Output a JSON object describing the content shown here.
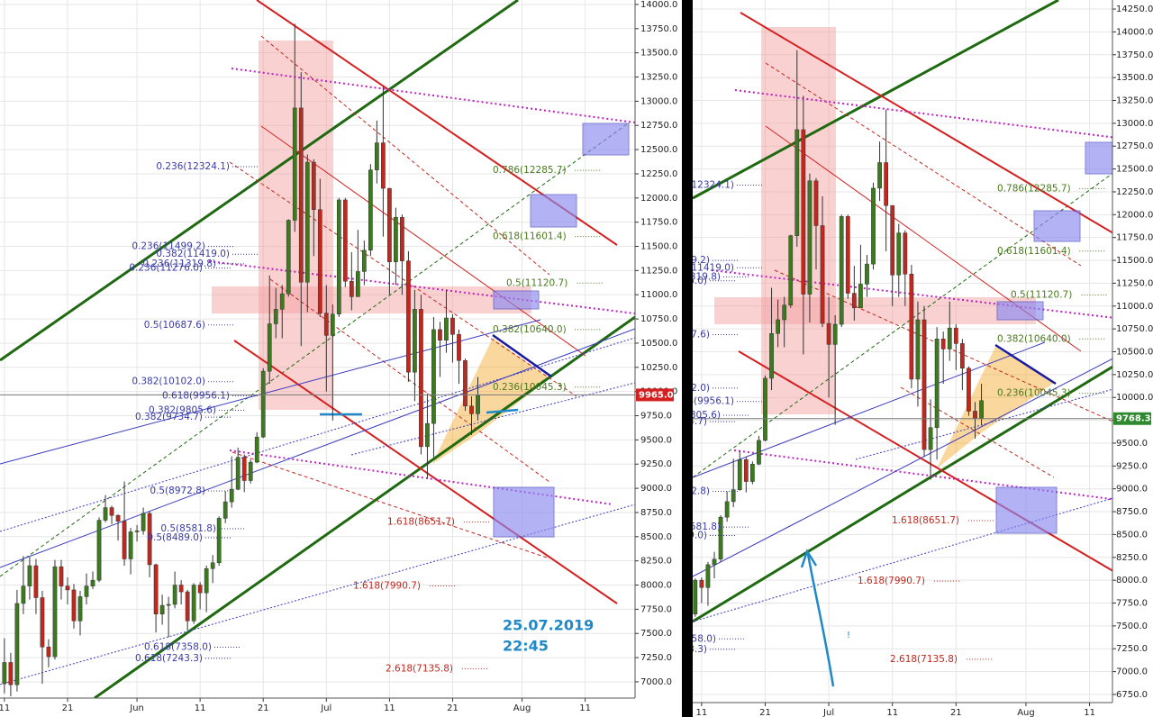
{
  "chart_data": [
    {
      "type": "candlestick",
      "xlim": [
        130.3,
        230.9
      ],
      "ylim": [
        6832,
        14046
      ],
      "xticks": [
        {
          "value": 131,
          "label": "11"
        },
        {
          "value": 141,
          "label": "21"
        },
        {
          "value": 152,
          "label": "Jun"
        },
        {
          "value": 162,
          "label": "11"
        },
        {
          "value": 172,
          "label": "21"
        },
        {
          "value": 182,
          "label": "Jul"
        },
        {
          "value": 192,
          "label": "11"
        },
        {
          "value": 202,
          "label": "21"
        },
        {
          "value": 213,
          "label": "Aug"
        },
        {
          "value": 223,
          "label": "11"
        }
      ],
      "yticks": [
        {
          "value": 7000,
          "label": "7000.0"
        },
        {
          "value": 7250,
          "label": "7250.0"
        },
        {
          "value": 7500,
          "label": "7500.0"
        },
        {
          "value": 7750,
          "label": "7750.0"
        },
        {
          "value": 8000,
          "label": "8000.0"
        },
        {
          "value": 8250,
          "label": "8250.0"
        },
        {
          "value": 8500,
          "label": "8500.0"
        },
        {
          "value": 8750,
          "label": "8750.0"
        },
        {
          "value": 9000,
          "label": "9000.0"
        },
        {
          "value": 9250,
          "label": "9250.0"
        },
        {
          "value": 9500,
          "label": "9500.0"
        },
        {
          "value": 9750,
          "label": "9750.0"
        },
        {
          "value": 10000,
          "label": "10000.0"
        },
        {
          "value": 10250,
          "label": "10250.0"
        },
        {
          "value": 10500,
          "label": "10500.0"
        },
        {
          "value": 10750,
          "label": "10750.0"
        },
        {
          "value": 11000,
          "label": "11000.0"
        },
        {
          "value": 11250,
          "label": "11250.0"
        },
        {
          "value": 11500,
          "label": "11500.0"
        },
        {
          "value": 11750,
          "label": "11750.0"
        },
        {
          "value": 12000,
          "label": "12000.0"
        },
        {
          "value": 12250,
          "label": "12250.0"
        },
        {
          "value": 12500,
          "label": "12500.0"
        },
        {
          "value": 12750,
          "label": "12750.0"
        },
        {
          "value": 13000,
          "label": "13000.0"
        },
        {
          "value": 13250,
          "label": "13250.0"
        },
        {
          "value": 13500,
          "label": "13500.0"
        },
        {
          "value": 13750,
          "label": "13750.0"
        },
        {
          "value": 14000,
          "label": "14000.0"
        }
      ],
      "grid": true,
      "up_color": "#3c7a1e",
      "down_color": "#c0281e",
      "candles": {
        "x": [
          131,
          132,
          133,
          134,
          135,
          136,
          137,
          138,
          139,
          140,
          141,
          142,
          143,
          144,
          145,
          146,
          147,
          148,
          149,
          150,
          151,
          152,
          153,
          154,
          155,
          156,
          157,
          158,
          159,
          160,
          161,
          162,
          163,
          164,
          165,
          166,
          167,
          168,
          169,
          170,
          171,
          172,
          173,
          174,
          175,
          176,
          177,
          178,
          179,
          180,
          181,
          182,
          183,
          184,
          185,
          186,
          187,
          188,
          189,
          190,
          191,
          192,
          193,
          194,
          195,
          196,
          197,
          198,
          199,
          200,
          201,
          202,
          203,
          204,
          205,
          206
        ],
        "open": [
          6980,
          7200,
          6970,
          7810,
          7990,
          8200,
          7870,
          7360,
          7260,
          8190,
          7990,
          7950,
          7630,
          7880,
          7990,
          8050,
          8670,
          8800,
          8720,
          8660,
          8270,
          8550,
          8560,
          8740,
          8210,
          7700,
          7790,
          7800,
          8000,
          7930,
          7630,
          8000,
          7920,
          8170,
          8230,
          8690,
          8860,
          8990,
          9320,
          9080,
          9270,
          9530,
          10210,
          10700,
          10850,
          11010,
          11770,
          12930,
          11130,
          12370,
          11880,
          10810,
          10580,
          10800,
          11980,
          11140,
          10980,
          11240,
          11460,
          12290,
          12570,
          12100,
          11340,
          11800,
          11350,
          10200,
          10850,
          9430,
          9670,
          10640,
          10530,
          10760,
          10590,
          10320,
          9850,
          9770
        ],
        "high": [
          7450,
          7300,
          7950,
          8300,
          8290,
          8270,
          7940,
          7440,
          8260,
          8260,
          8080,
          8010,
          7940,
          8120,
          8140,
          8700,
          8930,
          8820,
          8730,
          9070,
          8590,
          8620,
          8800,
          8760,
          8220,
          7900,
          7880,
          8140,
          8050,
          7950,
          8020,
          8030,
          8200,
          8310,
          8710,
          8970,
          9330,
          9420,
          9350,
          9300,
          9580,
          10240,
          11200,
          11070,
          11100,
          11780,
          13800,
          13300,
          12450,
          12400,
          12200,
          11100,
          10900,
          12000,
          12000,
          11440,
          11670,
          11560,
          12350,
          12800,
          13150,
          12100,
          11900,
          11830,
          11450,
          11050,
          11000,
          9980,
          10770,
          10720,
          11050,
          10800,
          10640,
          10340,
          9950,
          10150
        ],
        "low": [
          6880,
          6850,
          6900,
          7700,
          7850,
          7700,
          6980,
          7150,
          7230,
          7850,
          7800,
          7550,
          7480,
          7800,
          7960,
          8030,
          8650,
          8630,
          8460,
          8200,
          8110,
          8450,
          8520,
          8080,
          7510,
          7590,
          7460,
          7760,
          7800,
          7530,
          7600,
          7750,
          7720,
          8020,
          8200,
          8640,
          8800,
          8980,
          8960,
          9050,
          9260,
          9520,
          10080,
          10550,
          10550,
          10980,
          11650,
          10470,
          10820,
          11400,
          10770,
          10000,
          9700,
          10770,
          11080,
          10840,
          10980,
          11100,
          11400,
          12150,
          11600,
          11000,
          11100,
          11000,
          10100,
          9900,
          9350,
          9100,
          9320,
          10150,
          10400,
          10300,
          10080,
          9800,
          9550,
          9700
        ],
        "close": [
          7200,
          6970,
          7810,
          7990,
          8200,
          7870,
          7360,
          7260,
          8190,
          7990,
          7950,
          7630,
          7880,
          7990,
          8050,
          8670,
          8800,
          8720,
          8660,
          8270,
          8550,
          8560,
          8740,
          8210,
          7700,
          7790,
          7800,
          8000,
          7930,
          7630,
          8000,
          7920,
          8170,
          8230,
          8690,
          8860,
          8990,
          9320,
          9080,
          9270,
          9530,
          10210,
          10700,
          10850,
          11010,
          11770,
          12930,
          11130,
          12370,
          11880,
          10810,
          10580,
          10800,
          11980,
          11140,
          10980,
          11240,
          11460,
          12290,
          12570,
          12100,
          11340,
          11800,
          11350,
          10200,
          10850,
          9430,
          9670,
          10640,
          10530,
          10760,
          10590,
          10320,
          9850,
          9770,
          9965
        ]
      },
      "levels": [
        {
          "value": 12324.1,
          "label": "0.236(12324.1)",
          "color": "#3a3aa8"
        },
        {
          "value": 11499.2,
          "label": "0.236(11499.2)",
          "color": "#3a3aa8"
        },
        {
          "value": 11419.0,
          "label": "0.382(11419.0)",
          "color": "#3a3aa8"
        },
        {
          "value": 11319.8,
          "label": "0.236(11319.8)",
          "color": "#3a3aa8"
        },
        {
          "value": 11276.0,
          "label": "0.236(11276.0)",
          "color": "#3a3aa8"
        },
        {
          "value": 10687.6,
          "label": "0.5(10687.6)",
          "color": "#3a3aa8"
        },
        {
          "value": 10102.0,
          "label": "0.382(10102.0)",
          "color": "#3a3aa8"
        },
        {
          "value": 9956.1,
          "label": "0.618(9956.1)",
          "color": "#3a3aa8"
        },
        {
          "value": 9805.6,
          "label": "0.382(9805.6)",
          "color": "#3a3aa8"
        },
        {
          "value": 9734.7,
          "label": "0.382(9734.7)",
          "color": "#3a3aa8"
        },
        {
          "value": 8972.8,
          "label": "0.5(8972.8)",
          "color": "#3a3aa8"
        },
        {
          "value": 8581.8,
          "label": "0.5(8581.8)",
          "color": "#3a3aa8"
        },
        {
          "value": 8489.0,
          "label": "0.5(8489.0)",
          "color": "#3a3aa8"
        },
        {
          "value": 7358.0,
          "label": "0.618(7358.0)",
          "color": "#3a3aa8"
        },
        {
          "value": 7243.3,
          "label": "0.618(7243.3)",
          "color": "#3a3aa8"
        },
        {
          "value": 12285.7,
          "label": "0.786(12285.7)",
          "color": "#4a7a1e"
        },
        {
          "value": 11601.4,
          "label": "0.618(11601.4)",
          "color": "#4a7a1e"
        },
        {
          "value": 11120.7,
          "label": "0.5(11120.7)",
          "color": "#4a7a1e"
        },
        {
          "value": 10640.0,
          "label": "0.382(10640.0)",
          "color": "#4a7a1e"
        },
        {
          "value": 10045.3,
          "label": "0.236(10045.3)",
          "color": "#4a7a1e"
        },
        {
          "value": 8651.7,
          "label": "1.618(8651.7)",
          "color": "#c0281e"
        },
        {
          "value": 7990.7,
          "label": "1.618(7990.7)",
          "color": "#c0281e"
        },
        {
          "value": 7135.8,
          "label": "2.618(7135.8)",
          "color": "#c0281e"
        }
      ],
      "price_tag": {
        "value": 9965,
        "label": "9965.0",
        "color": "#d42020"
      },
      "annotation": [
        "25.07.2019",
        "22:45"
      ]
    },
    {
      "type": "candlestick",
      "xlim": [
        160.6,
        226.6
      ],
      "ylim": [
        6661,
        14349
      ],
      "xticks": [
        {
          "value": 162,
          "label": "11"
        },
        {
          "value": 172,
          "label": "21"
        },
        {
          "value": 182,
          "label": "Jul"
        },
        {
          "value": 192,
          "label": "11"
        },
        {
          "value": 202,
          "label": "21"
        },
        {
          "value": 213,
          "label": "Aug"
        },
        {
          "value": 223,
          "label": "11"
        }
      ],
      "yticks": [
        {
          "value": 6750,
          "label": "6750.0"
        },
        {
          "value": 7000,
          "label": "7000.0"
        },
        {
          "value": 7250,
          "label": "7250.0"
        },
        {
          "value": 7500,
          "label": "7500.0"
        },
        {
          "value": 7750,
          "label": "7750.0"
        },
        {
          "value": 8000,
          "label": "8000.0"
        },
        {
          "value": 8250,
          "label": "8250.0"
        },
        {
          "value": 8500,
          "label": "8500.0"
        },
        {
          "value": 8750,
          "label": "8750.0"
        },
        {
          "value": 9000,
          "label": "9000.0"
        },
        {
          "value": 9250,
          "label": "9250.0"
        },
        {
          "value": 9500,
          "label": "9500.0"
        },
        {
          "value": 9750,
          "label": "9750.0"
        },
        {
          "value": 10000,
          "label": "10000.0"
        },
        {
          "value": 10250,
          "label": "10250.0"
        },
        {
          "value": 10500,
          "label": "10500.0"
        },
        {
          "value": 10750,
          "label": "10750.0"
        },
        {
          "value": 11000,
          "label": "11000.0"
        },
        {
          "value": 11250,
          "label": "11250.0"
        },
        {
          "value": 11500,
          "label": "11500.0"
        },
        {
          "value": 11750,
          "label": "11750.0"
        },
        {
          "value": 12000,
          "label": "12000.0"
        },
        {
          "value": 12250,
          "label": "12250.0"
        },
        {
          "value": 12500,
          "label": "12500.0"
        },
        {
          "value": 12750,
          "label": "12750.0"
        },
        {
          "value": 13000,
          "label": "13000.0"
        },
        {
          "value": 13250,
          "label": "13250.0"
        },
        {
          "value": 13500,
          "label": "13500.0"
        },
        {
          "value": 13750,
          "label": "13750.0"
        },
        {
          "value": 14000,
          "label": "14000.0"
        },
        {
          "value": 14250,
          "label": "14250.0"
        }
      ],
      "grid": true,
      "price_tag": {
        "value": 9768.3,
        "label": "9768.3",
        "color": "#2f8a2f"
      },
      "note": "!"
    }
  ]
}
